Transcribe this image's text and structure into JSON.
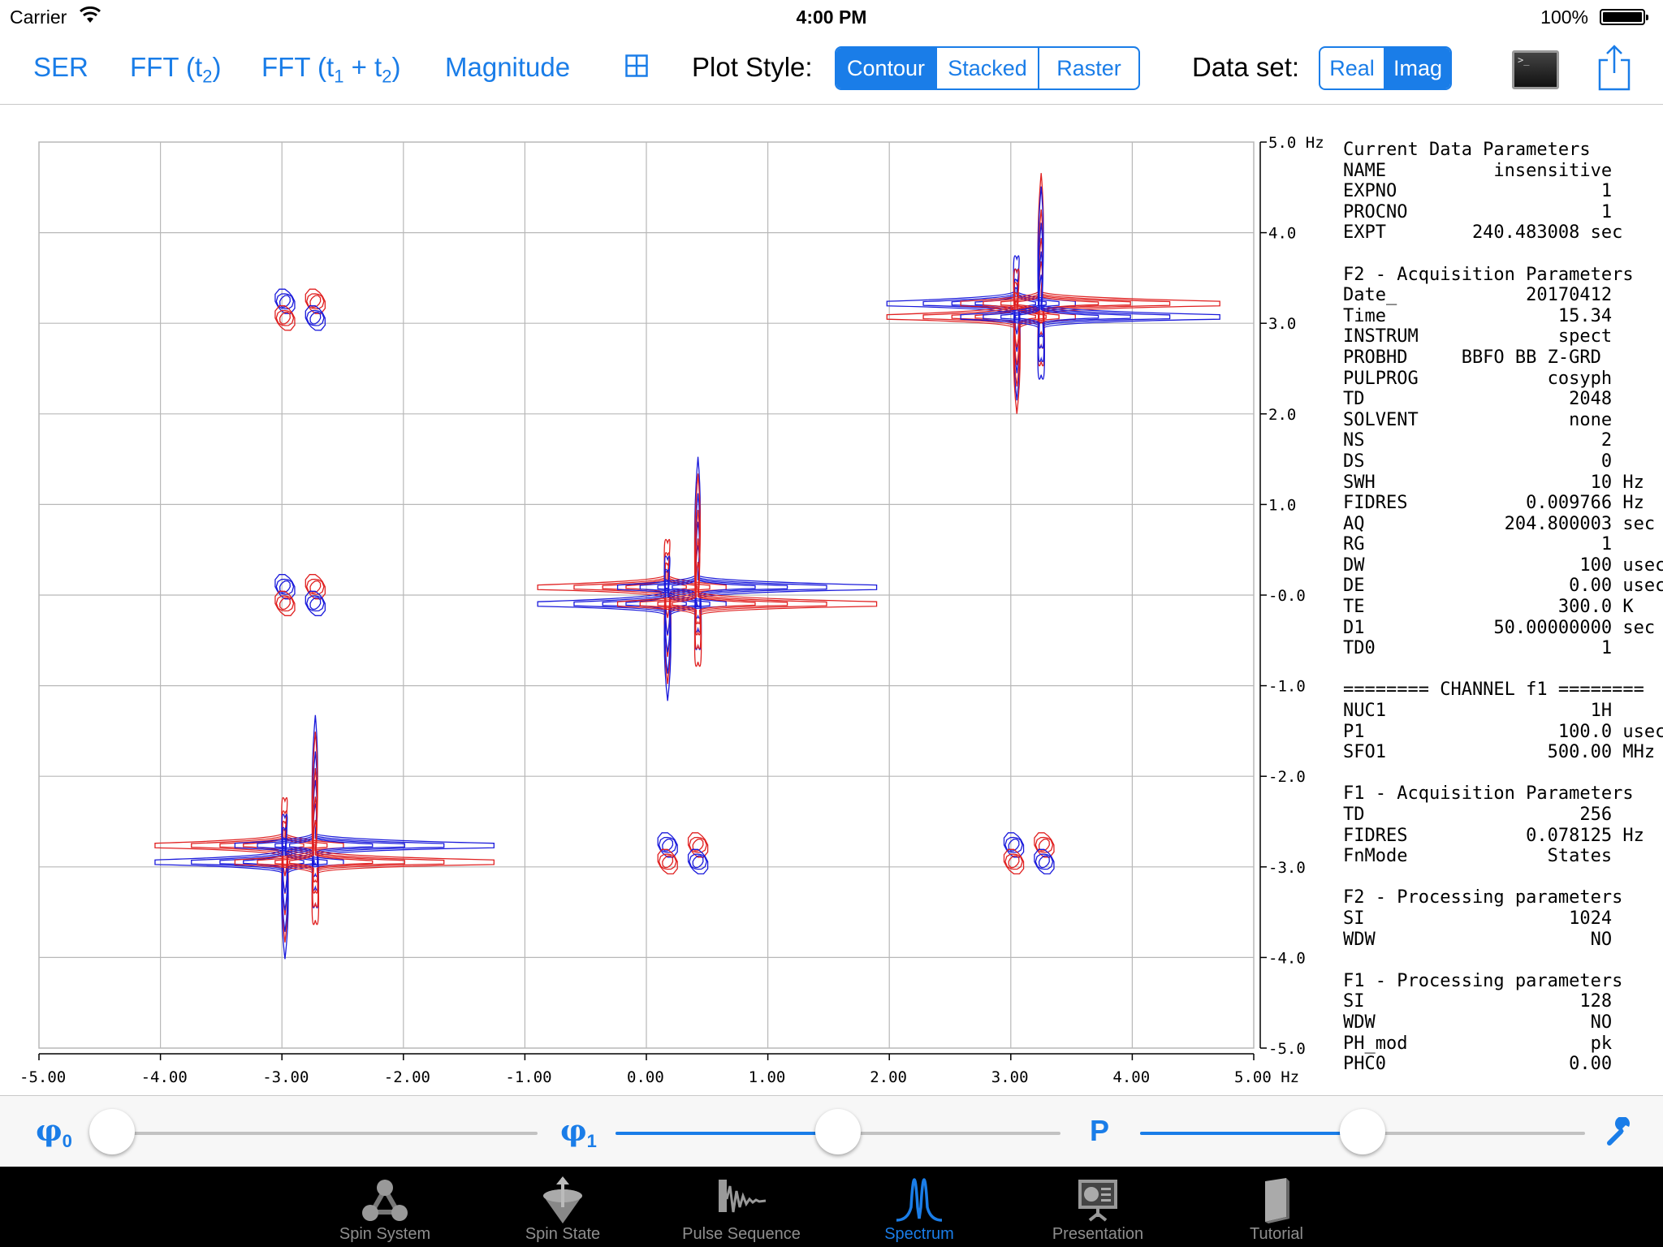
{
  "status": {
    "carrier": "Carrier",
    "time": "4:00 PM",
    "battery": "100%"
  },
  "toolbar": {
    "ser": "SER",
    "fft_t2": "FFT (t",
    "fft_t2_sub": "2",
    "fft_t1t2": "FFT (t",
    "fft_t1t2_sub1": "1",
    "fft_t1t2_mid": " + t",
    "fft_t1t2_sub2": "2",
    "close_paren": ")",
    "magnitude": "Magnitude",
    "plot_style_label": "Plot Style:",
    "plot_styles": [
      "Contour",
      "Stacked",
      "Raster"
    ],
    "plot_style_selected": "Contour",
    "data_set_label": "Data set:",
    "data_sets": [
      "Real",
      "Imag"
    ],
    "data_set_selected": "Imag",
    "terminal_prompt": ">_"
  },
  "chart_data": {
    "type": "contour",
    "x_ticks": [
      "-5.00",
      "-4.00",
      "-3.00",
      "-2.00",
      "-1.00",
      "0.00",
      "1.00",
      "2.00",
      "3.00",
      "4.00",
      "5.00 Hz"
    ],
    "y_ticks": [
      "5.0 Hz",
      "4.0",
      "3.0",
      "2.0",
      "1.0",
      "-0.0",
      "-1.0",
      "-2.0",
      "-3.0",
      "-4.0",
      "-5.0"
    ],
    "xlim": [
      -5,
      5
    ],
    "ylim": [
      -5,
      5
    ],
    "grid": true,
    "colors": {
      "positive": "#e02020",
      "negative": "#1a1adb"
    },
    "peak_groups": [
      {
        "type": "diagonal",
        "center": [
          0.3,
          0.0
        ],
        "split": 0.25
      },
      {
        "type": "diagonal",
        "center": [
          3.15,
          3.15
        ],
        "split": 0.2
      },
      {
        "type": "diagonal",
        "center": [
          -2.85,
          -2.85
        ],
        "split": 0.25
      },
      {
        "type": "cross",
        "center": [
          -2.85,
          3.15
        ],
        "split": 0.25
      },
      {
        "type": "cross",
        "center": [
          -2.85,
          0.0
        ],
        "split": 0.25
      },
      {
        "type": "cross",
        "center": [
          0.3,
          -2.85
        ],
        "split": 0.25
      },
      {
        "type": "cross",
        "center": [
          3.15,
          -2.85
        ],
        "split": 0.25
      }
    ]
  },
  "params": {
    "lines": [
      "Current Data Parameters",
      "NAME          insensitive",
      "EXPNO                   1",
      "PROCNO                  1",
      "EXPT        240.483008 sec",
      "",
      "F2 - Acquisition Parameters",
      "Date_            20170412",
      "Time                15.34",
      "INSTRUM             spect",
      "PROBHD     BBFO BB Z-GRD",
      "PULPROG            cosyph",
      "TD                   2048",
      "SOLVENT              none",
      "NS                      2",
      "DS                      0",
      "SWH                    10 Hz",
      "FIDRES           0.009766 Hz",
      "AQ             204.800003 sec",
      "RG                      1",
      "DW                    100 usec",
      "DE                   0.00 usec",
      "TE                  300.0 K",
      "D1            50.00000000 sec",
      "TD0                     1",
      "",
      "======== CHANNEL f1 ========",
      "NUC1                   1H",
      "P1                  100.0 usec",
      "SFO1               500.00 MHz",
      "",
      "F1 - Acquisition Parameters",
      "TD                    256",
      "FIDRES           0.078125 Hz",
      "FnMode             States",
      "",
      "F2 - Processing parameters",
      "SI                   1024",
      "WDW                    NO",
      "",
      "F1 - Processing parameters",
      "SI                    128",
      "WDW                    NO",
      "PH_mod                 pk",
      "PHC0                 0.00"
    ]
  },
  "sliders": {
    "phi0_label": "φ",
    "phi0_sub": "0",
    "phi0_value": 0.0,
    "phi1_label": "φ",
    "phi1_sub": "1",
    "phi1_value": 0.5,
    "p_label": "P",
    "p_value": 0.5
  },
  "tabbar": {
    "tabs": [
      {
        "label": "Spin System",
        "icon": "spin-system-icon"
      },
      {
        "label": "Spin State",
        "icon": "spin-state-icon"
      },
      {
        "label": "Pulse Sequence",
        "icon": "pulse-sequence-icon"
      },
      {
        "label": "Spectrum",
        "icon": "spectrum-icon"
      },
      {
        "label": "Presentation",
        "icon": "presentation-icon"
      },
      {
        "label": "Tutorial",
        "icon": "tutorial-icon"
      }
    ],
    "selected": "Spectrum"
  }
}
